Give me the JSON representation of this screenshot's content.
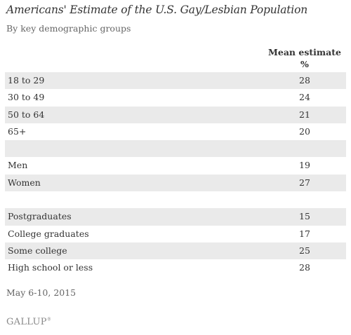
{
  "chart_data": {
    "type": "table",
    "title": "Americans' Estimate of the U.S. Gay/Lesbian Population",
    "subtitle": "By key demographic groups",
    "column_header": [
      "Mean estimate",
      "%"
    ],
    "rows": [
      {
        "label": "18 to 29",
        "value": "28"
      },
      {
        "label": "30 to 49",
        "value": "24"
      },
      {
        "label": "50 to 64",
        "value": "21"
      },
      {
        "label": "65+",
        "value": "20"
      },
      {
        "label": "",
        "value": ""
      },
      {
        "label": "Men",
        "value": "19"
      },
      {
        "label": "Women",
        "value": "27"
      },
      {
        "label": "",
        "value": ""
      },
      {
        "label": "Postgraduates",
        "value": "15"
      },
      {
        "label": "College graduates",
        "value": "17"
      },
      {
        "label": "Some college",
        "value": "25"
      },
      {
        "label": "High school or less",
        "value": "28"
      }
    ],
    "row_shading_color": "#eaeaea",
    "note": "May 6-10, 2015"
  },
  "footer": {
    "logo_text": "GALLUP"
  }
}
